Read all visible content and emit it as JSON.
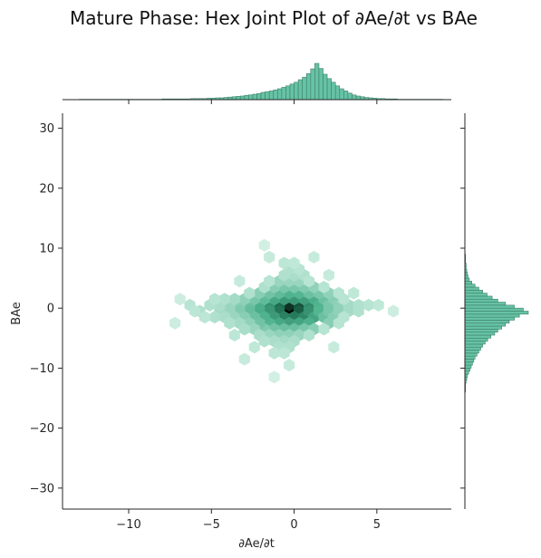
{
  "chart_data": {
    "type": "hexbin_joint",
    "title": "Mature Phase: Hex Joint Plot of ∂Ae/∂t vs BAe",
    "xlabel": "∂Ae/∂t",
    "ylabel": "BAe",
    "xlim": [
      -14,
      9.5
    ],
    "ylim": [
      -33.5,
      32.5
    ],
    "x_ticks": [
      -10,
      -5,
      0,
      5
    ],
    "x_tick_labels": [
      "−10",
      "−5",
      "0",
      "5"
    ],
    "y_ticks": [
      -30,
      -20,
      -10,
      0,
      10,
      20,
      30
    ],
    "y_tick_labels": [
      "−30",
      "−20",
      "−10",
      "0",
      "10",
      "20",
      "30"
    ],
    "grid": false,
    "colors": {
      "hex_max": "#000000",
      "hex_high": "#1e6e52",
      "hex_mid": "#4fb38e",
      "hex_low": "#bfe8d8",
      "hist_fill": "#66c2a5",
      "hist_edge": "#3d7f67",
      "axis": "#262626"
    },
    "marginal_x": {
      "bin_start": -13.0,
      "bin_width": 0.25,
      "counts": [
        1,
        1,
        1,
        1,
        1,
        1,
        1,
        1,
        1,
        1,
        1,
        1,
        1,
        1,
        1,
        1,
        1,
        1,
        1,
        1,
        2,
        2,
        2,
        2,
        2,
        2,
        2,
        3,
        3,
        3,
        3,
        4,
        4,
        5,
        5,
        6,
        7,
        8,
        9,
        10,
        12,
        13,
        15,
        17,
        20,
        22,
        24,
        27,
        30,
        34,
        38,
        43,
        48,
        55,
        62,
        72,
        85,
        100,
        86,
        70,
        58,
        48,
        38,
        30,
        24,
        18,
        13,
        10,
        8,
        6,
        5,
        4,
        3,
        3,
        2,
        2,
        2,
        1,
        1,
        1,
        1,
        1,
        1,
        1,
        1,
        1,
        1,
        1
      ]
    },
    "marginal_y": {
      "bin_start": -14,
      "bin_width": 0.5,
      "counts": [
        1,
        1,
        1,
        2,
        3,
        4,
        6,
        8,
        10,
        12,
        14,
        16,
        19,
        22,
        25,
        28,
        32,
        36,
        41,
        47,
        52,
        58,
        64,
        70,
        78,
        86,
        100,
        92,
        78,
        64,
        52,
        43,
        35,
        28,
        22,
        16,
        11,
        7,
        5,
        4,
        3,
        2,
        2,
        1,
        1,
        1
      ]
    },
    "hexbins": [
      {
        "x": -0.3,
        "y": -0.5,
        "level": 1.0
      },
      {
        "x": -0.3,
        "y": 0.5,
        "level": 0.8
      },
      {
        "x": 0.3,
        "y": 0.5,
        "level": 0.7
      },
      {
        "x": -0.9,
        "y": 0.5,
        "level": 0.6
      },
      {
        "x": 0.3,
        "y": -0.5,
        "level": 0.65
      },
      {
        "x": -0.9,
        "y": -0.5,
        "level": 0.55
      },
      {
        "x": 0.0,
        "y": -1.5,
        "level": 0.5
      },
      {
        "x": -0.6,
        "y": -1.5,
        "level": 0.45
      },
      {
        "x": 0.6,
        "y": -1.5,
        "level": 0.4
      },
      {
        "x": 0.9,
        "y": 0.5,
        "level": 0.38
      },
      {
        "x": -1.5,
        "y": 0.5,
        "level": 0.35
      },
      {
        "x": 0.9,
        "y": -0.5,
        "level": 0.33
      },
      {
        "x": -1.5,
        "y": -0.5,
        "level": 0.3
      },
      {
        "x": -1.2,
        "y": -1.5,
        "level": 0.28
      },
      {
        "x": 1.2,
        "y": -1.5,
        "level": 0.22
      },
      {
        "x": 0.0,
        "y": 1.5,
        "level": 0.3
      },
      {
        "x": -0.6,
        "y": 1.5,
        "level": 0.28
      },
      {
        "x": 0.6,
        "y": 1.5,
        "level": 0.25
      },
      {
        "x": -1.2,
        "y": 1.5,
        "level": 0.2
      },
      {
        "x": 1.2,
        "y": 1.5,
        "level": 0.18
      },
      {
        "x": -0.3,
        "y": -2.5,
        "level": 0.25
      },
      {
        "x": 0.3,
        "y": -2.5,
        "level": 0.22
      },
      {
        "x": -0.9,
        "y": -2.5,
        "level": 0.2
      },
      {
        "x": 0.9,
        "y": -2.5,
        "level": 0.16
      },
      {
        "x": -1.5,
        "y": -2.5,
        "level": 0.14
      },
      {
        "x": -2.1,
        "y": -0.5,
        "level": 0.18
      },
      {
        "x": -2.1,
        "y": 0.5,
        "level": 0.17
      },
      {
        "x": 1.5,
        "y": 0.5,
        "level": 0.15
      },
      {
        "x": 1.5,
        "y": -0.5,
        "level": 0.14
      },
      {
        "x": -1.8,
        "y": -1.5,
        "level": 0.15
      },
      {
        "x": 1.8,
        "y": -1.5,
        "level": 0.1
      },
      {
        "x": -1.8,
        "y": 1.5,
        "level": 0.12
      },
      {
        "x": 1.8,
        "y": 1.5,
        "level": 0.1
      },
      {
        "x": -0.3,
        "y": 2.5,
        "level": 0.15
      },
      {
        "x": 0.3,
        "y": 2.5,
        "level": 0.14
      },
      {
        "x": -0.9,
        "y": 2.5,
        "level": 0.12
      },
      {
        "x": 0.9,
        "y": 2.5,
        "level": 0.1
      },
      {
        "x": -1.5,
        "y": 2.5,
        "level": 0.09
      },
      {
        "x": 1.5,
        "y": 2.5,
        "level": 0.08
      },
      {
        "x": -2.7,
        "y": 0.5,
        "level": 0.1
      },
      {
        "x": -2.7,
        "y": -0.5,
        "level": 0.11
      },
      {
        "x": 2.1,
        "y": 0.5,
        "level": 0.08
      },
      {
        "x": 2.1,
        "y": -0.5,
        "level": 0.08
      },
      {
        "x": -2.4,
        "y": -1.5,
        "level": 0.1
      },
      {
        "x": -2.4,
        "y": 1.5,
        "level": 0.08
      },
      {
        "x": 2.4,
        "y": -1.5,
        "level": 0.06
      },
      {
        "x": 2.4,
        "y": 1.5,
        "level": 0.06
      },
      {
        "x": -0.6,
        "y": -3.5,
        "level": 0.1
      },
      {
        "x": 0.0,
        "y": -3.5,
        "level": 0.1
      },
      {
        "x": 0.6,
        "y": -3.5,
        "level": 0.08
      },
      {
        "x": -1.2,
        "y": -3.5,
        "level": 0.09
      },
      {
        "x": 1.2,
        "y": -3.5,
        "level": 0.06
      },
      {
        "x": -1.8,
        "y": -3.5,
        "level": 0.07
      },
      {
        "x": -2.1,
        "y": -2.5,
        "level": 0.09
      },
      {
        "x": 2.1,
        "y": -2.5,
        "level": 0.06
      },
      {
        "x": -0.6,
        "y": 3.5,
        "level": 0.08
      },
      {
        "x": 0.0,
        "y": 3.5,
        "level": 0.08
      },
      {
        "x": 0.6,
        "y": 3.5,
        "level": 0.07
      },
      {
        "x": -1.2,
        "y": 3.5,
        "level": 0.06
      },
      {
        "x": 1.2,
        "y": 3.5,
        "level": 0.05
      },
      {
        "x": -2.1,
        "y": 2.5,
        "level": 0.06
      },
      {
        "x": 2.1,
        "y": 2.5,
        "level": 0.05
      },
      {
        "x": -3.3,
        "y": 0.5,
        "level": 0.06
      },
      {
        "x": -3.3,
        "y": -0.5,
        "level": 0.07
      },
      {
        "x": -3.0,
        "y": -1.5,
        "level": 0.06
      },
      {
        "x": -3.0,
        "y": 1.5,
        "level": 0.05
      },
      {
        "x": 2.7,
        "y": 0.5,
        "level": 0.05
      },
      {
        "x": 2.7,
        "y": -0.5,
        "level": 0.05
      },
      {
        "x": -2.7,
        "y": -2.5,
        "level": 0.05
      },
      {
        "x": -0.3,
        "y": -4.5,
        "level": 0.05
      },
      {
        "x": -0.9,
        "y": -4.5,
        "level": 0.05
      },
      {
        "x": 0.3,
        "y": -4.5,
        "level": 0.04
      },
      {
        "x": -1.5,
        "y": -4.5,
        "level": 0.04
      },
      {
        "x": -0.3,
        "y": 4.5,
        "level": 0.04
      },
      {
        "x": 0.3,
        "y": 4.5,
        "level": 0.04
      },
      {
        "x": -0.9,
        "y": 4.5,
        "level": 0.04
      },
      {
        "x": -3.9,
        "y": 0.5,
        "level": 0.04
      },
      {
        "x": -3.9,
        "y": -0.5,
        "level": 0.04
      },
      {
        "x": -3.6,
        "y": -1.5,
        "level": 0.04
      },
      {
        "x": -3.6,
        "y": 1.5,
        "level": 0.03
      },
      {
        "x": 3.3,
        "y": 0.5,
        "level": 0.03
      },
      {
        "x": 3.3,
        "y": -0.5,
        "level": 0.03
      },
      {
        "x": -2.4,
        "y": -3.5,
        "level": 0.04
      },
      {
        "x": -3.3,
        "y": -2.5,
        "level": 0.03
      },
      {
        "x": -4.5,
        "y": -0.5,
        "level": 0.03
      },
      {
        "x": -4.5,
        "y": 0.5,
        "level": 0.025
      },
      {
        "x": -5.1,
        "y": 0.5,
        "level": 0.02
      },
      {
        "x": -5.7,
        "y": -0.5,
        "level": 0.02
      },
      {
        "x": -6.3,
        "y": 0.5,
        "level": 0.015
      },
      {
        "x": -4.2,
        "y": -1.5,
        "level": 0.025
      },
      {
        "x": -4.8,
        "y": -1.5,
        "level": 0.02
      },
      {
        "x": -4.2,
        "y": 1.5,
        "level": 0.02
      },
      {
        "x": -4.8,
        "y": 1.5,
        "level": 0.015
      },
      {
        "x": 3.9,
        "y": 0.5,
        "level": 0.02
      },
      {
        "x": 3.9,
        "y": -0.5,
        "level": 0.02
      },
      {
        "x": 4.5,
        "y": 0.5,
        "level": 0.015
      },
      {
        "x": -0.6,
        "y": -5.5,
        "level": 0.03
      },
      {
        "x": 0.0,
        "y": -5.5,
        "level": 0.025
      },
      {
        "x": -1.2,
        "y": -5.5,
        "level": 0.025
      },
      {
        "x": -0.3,
        "y": -6.5,
        "level": 0.02
      },
      {
        "x": -0.9,
        "y": -6.5,
        "level": 0.02
      },
      {
        "x": 0.0,
        "y": 5.5,
        "level": 0.025
      },
      {
        "x": -0.6,
        "y": 5.5,
        "level": 0.02
      },
      {
        "x": 0.6,
        "y": 5.5,
        "level": 0.02
      },
      {
        "x": -0.3,
        "y": 6.5,
        "level": 0.02
      },
      {
        "x": 0.3,
        "y": 6.5,
        "level": 0.015
      },
      {
        "x": -3.0,
        "y": -3.5,
        "level": 0.025
      },
      {
        "x": -3.9,
        "y": -2.5,
        "level": 0.02
      },
      {
        "x": -2.1,
        "y": -4.5,
        "level": 0.025
      },
      {
        "x": -1.8,
        "y": -5.5,
        "level": 0.02
      },
      {
        "x": -2.7,
        "y": 2.5,
        "level": 0.02
      },
      {
        "x": -1.8,
        "y": 3.5,
        "level": 0.02
      },
      {
        "x": -1.5,
        "y": 4.5,
        "level": 0.015
      },
      {
        "x": 1.8,
        "y": 3.5,
        "level": 0.015
      },
      {
        "x": 2.7,
        "y": 2.5,
        "level": 0.015
      },
      {
        "x": 2.7,
        "y": -2.5,
        "level": 0.015
      },
      {
        "x": 1.8,
        "y": -3.5,
        "level": 0.015
      },
      {
        "x": 0.9,
        "y": -4.5,
        "level": 0.02
      },
      {
        "x": 0.9,
        "y": 4.5,
        "level": 0.015
      },
      {
        "x": 3.0,
        "y": 1.5,
        "level": 0.015
      },
      {
        "x": 3.0,
        "y": -1.5,
        "level": 0.015
      },
      {
        "x": -5.4,
        "y": -1.5,
        "level": 0.012
      },
      {
        "x": -6.0,
        "y": -0.5,
        "level": 0.012
      },
      {
        "x": -0.6,
        "y": 7.5,
        "level": 0.012
      },
      {
        "x": 0.0,
        "y": 7.5,
        "level": 0.01
      },
      {
        "x": -1.2,
        "y": -7.5,
        "level": 0.012
      },
      {
        "x": -0.6,
        "y": -7.5,
        "level": 0.012
      },
      {
        "x": -3.6,
        "y": -4.5,
        "level": 0.012
      },
      {
        "x": -2.4,
        "y": -6.5,
        "level": 0.01
      },
      {
        "x": 5.1,
        "y": 0.5,
        "level": 0.01
      },
      {
        "x": 3.6,
        "y": 2.5,
        "level": 0.01
      },
      {
        "x": 1.2,
        "y": 8.5,
        "level": 0.008
      },
      {
        "x": -1.5,
        "y": 8.5,
        "level": 0.008
      },
      {
        "x": -3.3,
        "y": 4.5,
        "level": 0.008
      },
      {
        "x": -0.3,
        "y": -9.5,
        "level": 0.008
      },
      {
        "x": -3.0,
        "y": -8.5,
        "level": 0.008
      },
      {
        "x": 2.4,
        "y": -6.5,
        "level": 0.008
      },
      {
        "x": 2.1,
        "y": 5.5,
        "level": 0.008
      },
      {
        "x": -7.2,
        "y": -2.5,
        "level": 0.006
      },
      {
        "x": -6.9,
        "y": 1.5,
        "level": 0.006
      },
      {
        "x": 6.0,
        "y": -0.5,
        "level": 0.006
      },
      {
        "x": -1.8,
        "y": 10.5,
        "level": 0.005
      },
      {
        "x": -1.2,
        "y": -11.5,
        "level": 0.005
      }
    ]
  }
}
